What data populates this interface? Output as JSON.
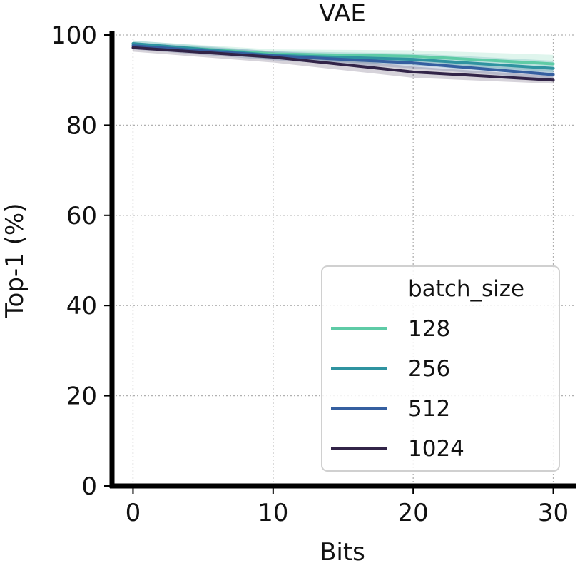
{
  "chart_data": {
    "type": "line",
    "title": "VAE",
    "xlabel": "Bits",
    "ylabel": "Top-1 (%)",
    "x": [
      0,
      10,
      20,
      30
    ],
    "xlim": [
      -1.5,
      31.5
    ],
    "ylim": [
      0,
      100
    ],
    "xticks": [
      0,
      10,
      20,
      30
    ],
    "yticks": [
      0,
      20,
      40,
      60,
      80,
      100
    ],
    "grid": true,
    "legend": {
      "title": "batch_size",
      "placement": "bottom-right"
    },
    "series": [
      {
        "name": "128",
        "color": "#5ecba6",
        "values": [
          98.0,
          95.8,
          95.3,
          93.6
        ],
        "lower": [
          97.3,
          94.8,
          93.8,
          91.8
        ],
        "upper": [
          98.7,
          96.8,
          96.6,
          95.6
        ]
      },
      {
        "name": "256",
        "color": "#2f93a0",
        "values": [
          98.1,
          95.5,
          94.6,
          92.6
        ],
        "lower": [
          97.4,
          94.6,
          93.3,
          91.0
        ],
        "upper": [
          98.8,
          96.4,
          95.9,
          94.3
        ]
      },
      {
        "name": "512",
        "color": "#355fa0",
        "values": [
          97.6,
          95.4,
          93.8,
          91.2
        ],
        "lower": [
          96.8,
          94.4,
          92.6,
          90.2
        ],
        "upper": [
          98.4,
          96.4,
          95.0,
          92.3
        ]
      },
      {
        "name": "1024",
        "color": "#322448",
        "values": [
          97.2,
          95.1,
          91.8,
          90.0
        ],
        "lower": [
          96.3,
          93.9,
          90.5,
          89.2
        ],
        "upper": [
          98.1,
          96.2,
          93.0,
          90.9
        ]
      }
    ]
  }
}
